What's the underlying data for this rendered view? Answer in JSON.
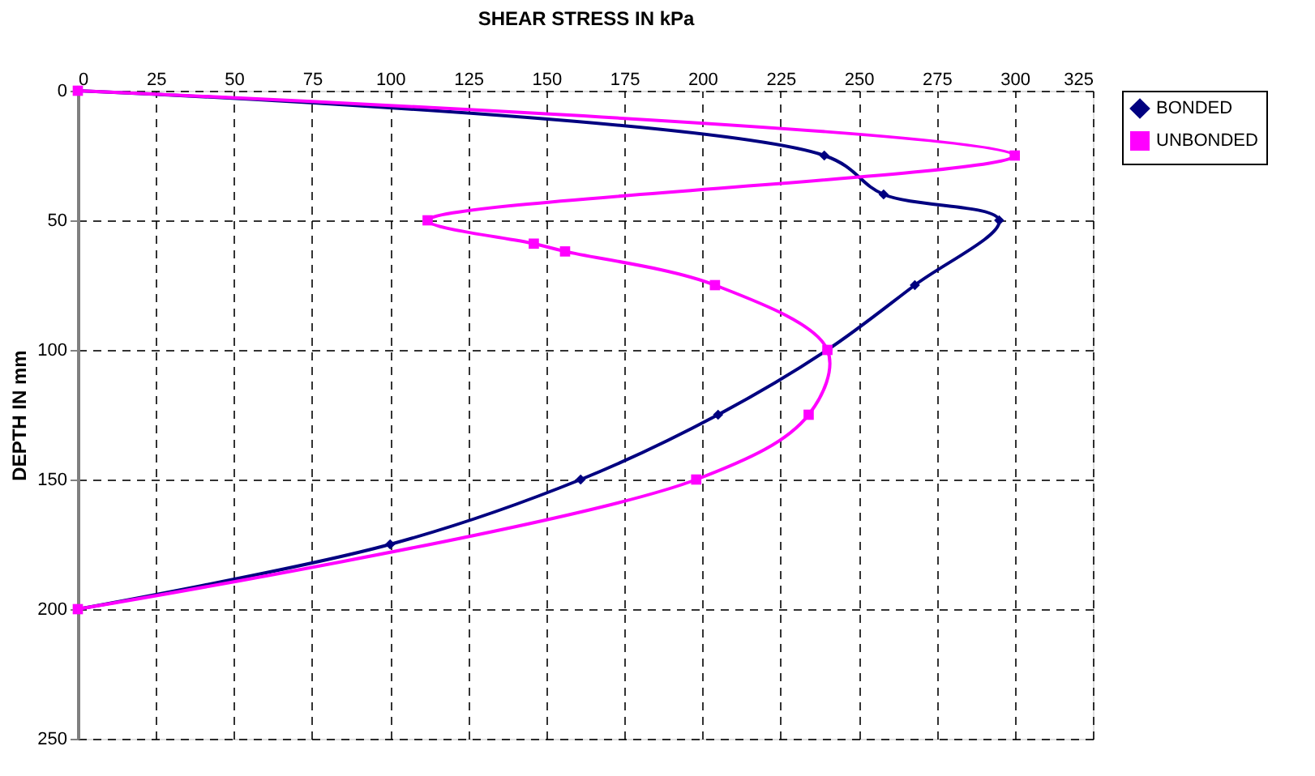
{
  "chart_data": {
    "type": "line",
    "xlabel": "SHEAR STRESS IN kPa",
    "ylabel": "DEPTH IN mm",
    "xlim": [
      0,
      325
    ],
    "xticks": [
      0,
      25,
      50,
      75,
      100,
      125,
      150,
      175,
      200,
      225,
      250,
      275,
      300,
      325
    ],
    "ylim": [
      250,
      0
    ],
    "yticks": [
      0,
      50,
      100,
      150,
      200,
      250
    ],
    "grid": true,
    "legend": "right",
    "series": [
      {
        "name": "BONDED",
        "color": "#000080",
        "marker": "diamond",
        "x": [
          0,
          239,
          258,
          295,
          268,
          240,
          205,
          161,
          100,
          0
        ],
        "values": [
          0,
          25,
          40,
          50,
          75,
          100,
          125,
          150,
          175,
          200
        ]
      },
      {
        "name": "UNBONDED",
        "color": "#ff00ff",
        "marker": "square",
        "x": [
          0,
          300,
          112,
          146,
          156,
          204,
          240,
          234,
          198,
          0
        ],
        "values": [
          0,
          25,
          50,
          59,
          62,
          75,
          100,
          125,
          150,
          200
        ]
      }
    ]
  }
}
